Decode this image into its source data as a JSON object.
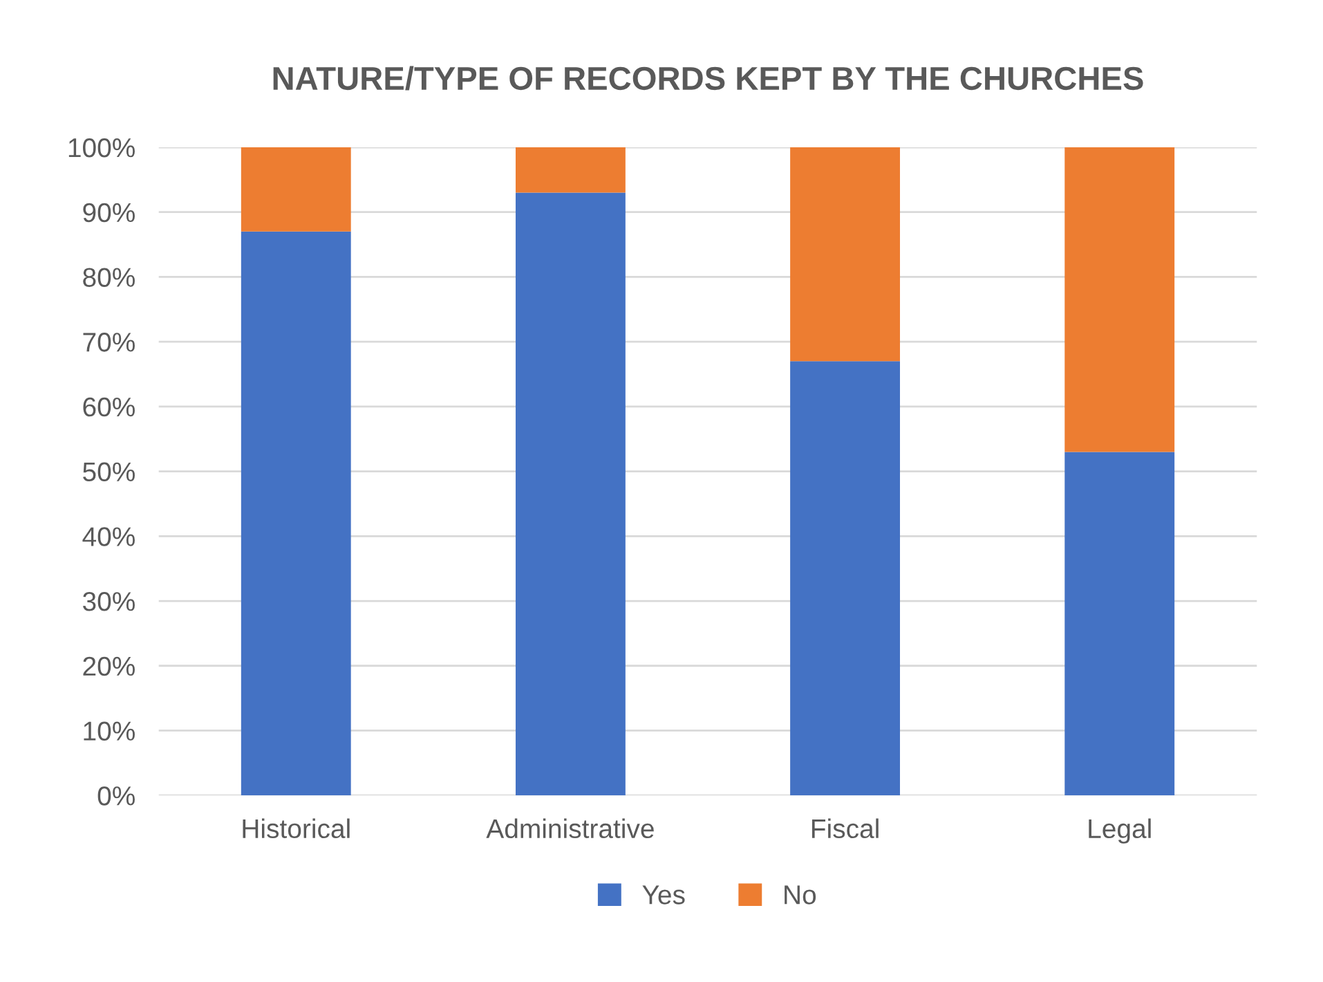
{
  "chart_data": {
    "type": "bar",
    "title": "NATURE/TYPE OF RECORDS KEPT BY THE CHURCHES",
    "categories": [
      "Historical",
      "Administrative",
      "Fiscal",
      "Legal"
    ],
    "stacked": true,
    "series": [
      {
        "name": "Yes",
        "color": "#4472c4",
        "values": [
          87,
          93,
          67,
          53
        ]
      },
      {
        "name": "No",
        "color": "#ed7d31",
        "values": [
          13,
          7,
          33,
          47
        ]
      }
    ],
    "ylim": [
      0,
      100
    ],
    "yticks": [
      {
        "value": 0,
        "label": "0%"
      },
      {
        "value": 10,
        "label": "10%"
      },
      {
        "value": 20,
        "label": "20%"
      },
      {
        "value": 30,
        "label": "30%"
      },
      {
        "value": 40,
        "label": "40%"
      },
      {
        "value": 50,
        "label": "50%"
      },
      {
        "value": 60,
        "label": "60%"
      },
      {
        "value": 70,
        "label": "70%"
      },
      {
        "value": 80,
        "label": "80%"
      },
      {
        "value": 90,
        "label": "90%"
      },
      {
        "value": 100,
        "label": "100%"
      }
    ],
    "grid": "y",
    "legend": "bottom"
  }
}
